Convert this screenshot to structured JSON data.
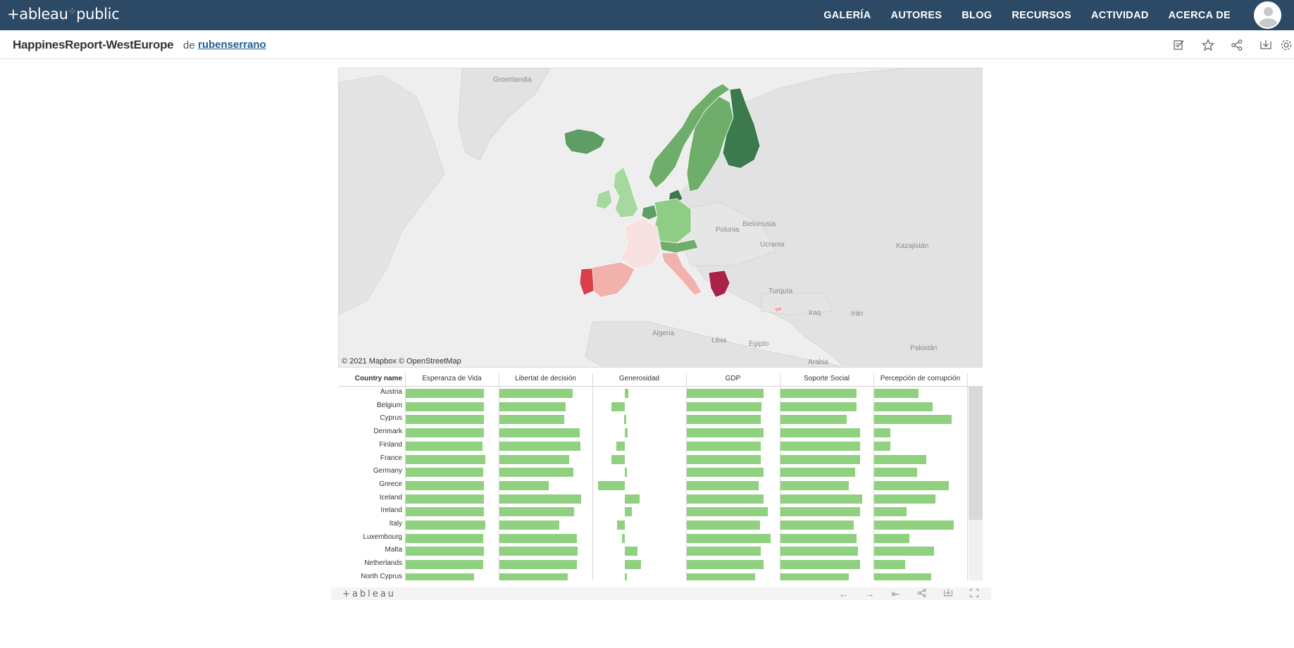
{
  "nav": {
    "logo": "+ableau",
    "logo_dots": "⁘",
    "logo_public": "public",
    "items": [
      "GALERÍA",
      "AUTORES",
      "BLOG",
      "RECURSOS",
      "ACTIVIDAD",
      "ACERCA DE"
    ]
  },
  "title": {
    "viz_name": "HappinesReport-WestEurope",
    "by": "de",
    "author": "rubenserrano"
  },
  "map": {
    "attribution": "© 2021 Mapbox  © OpenStreetMap",
    "labels": [
      "Groenlandia",
      "Bielorrusia",
      "Polonia",
      "Ucrania",
      "Kazajistán",
      "Turquía",
      "Iraq",
      "Irán",
      "Algeria",
      "Libia",
      "Egipto",
      "Arabia",
      "Pakistán"
    ],
    "colors": {
      "water": "#eeeeee",
      "land": "#e0e0e0",
      "green_dark": "#3c7a4e",
      "green_mid": "#5e9e64",
      "green_light": "#a6d9a0",
      "pink_light": "#f7d9d9",
      "pink_mid": "#f2b1ad",
      "red": "#d9404a",
      "crimson": "#a8224a"
    }
  },
  "table": {
    "country_header": "Country name",
    "columns": [
      "Esperanza de Vida",
      "Libertat de decisión",
      "Generosidad",
      "GDP",
      "Soporte Social",
      "Percepción de corrupción"
    ],
    "countries": [
      "Austria",
      "Belgium",
      "Cyprus",
      "Denmark",
      "Finland",
      "France",
      "Germany",
      "Greece",
      "Iceland",
      "Ireland",
      "Italy",
      "Luxembourg",
      "Malta",
      "Netherlands",
      "North Cyprus"
    ],
    "bar_color": "#8fd17f"
  },
  "chart_data": {
    "type": "bar",
    "categories": [
      "Austria",
      "Belgium",
      "Cyprus",
      "Denmark",
      "Finland",
      "France",
      "Germany",
      "Greece",
      "Iceland",
      "Ireland",
      "Italy",
      "Luxembourg",
      "Malta",
      "Netherlands",
      "North Cyprus"
    ],
    "series": [
      {
        "name": "Esperanza de Vida",
        "values": [
          0.92,
          0.92,
          0.92,
          0.92,
          0.9,
          0.93,
          0.91,
          0.92,
          0.92,
          0.92,
          0.93,
          0.91,
          0.92,
          0.91,
          0.8
        ]
      },
      {
        "name": "Libertat de decisión",
        "values": [
          0.86,
          0.78,
          0.76,
          0.94,
          0.95,
          0.82,
          0.87,
          0.58,
          0.96,
          0.88,
          0.7,
          0.91,
          0.92,
          0.91,
          0.8
        ]
      },
      {
        "name": "Generosidad",
        "values": [
          0.06,
          -0.26,
          -0.02,
          0.05,
          -0.17,
          -0.26,
          0.01,
          -0.51,
          0.27,
          0.13,
          -0.15,
          -0.06,
          0.23,
          0.3,
          0.02
        ]
      },
      {
        "name": "GDP",
        "values": [
          0.9,
          0.88,
          0.87,
          0.9,
          0.87,
          0.87,
          0.9,
          0.84,
          0.9,
          0.95,
          0.86,
          0.98,
          0.87,
          0.9,
          0.8
        ]
      },
      {
        "name": "Soporte Social",
        "values": [
          0.89,
          0.89,
          0.78,
          0.93,
          0.93,
          0.93,
          0.88,
          0.8,
          0.96,
          0.93,
          0.86,
          0.89,
          0.91,
          0.93,
          0.8
        ]
      },
      {
        "name": "Percepción de corrupción",
        "values": [
          0.52,
          0.69,
          0.91,
          0.19,
          0.19,
          0.61,
          0.5,
          0.88,
          0.72,
          0.38,
          0.93,
          0.41,
          0.7,
          0.36,
          0.67
        ]
      }
    ],
    "ylim": [
      -0.6,
      1.0
    ]
  },
  "footer": {
    "logo": "+ableau",
    "tools": [
      "←",
      "→",
      "⇤",
      "share",
      "download",
      "fullscreen"
    ]
  }
}
